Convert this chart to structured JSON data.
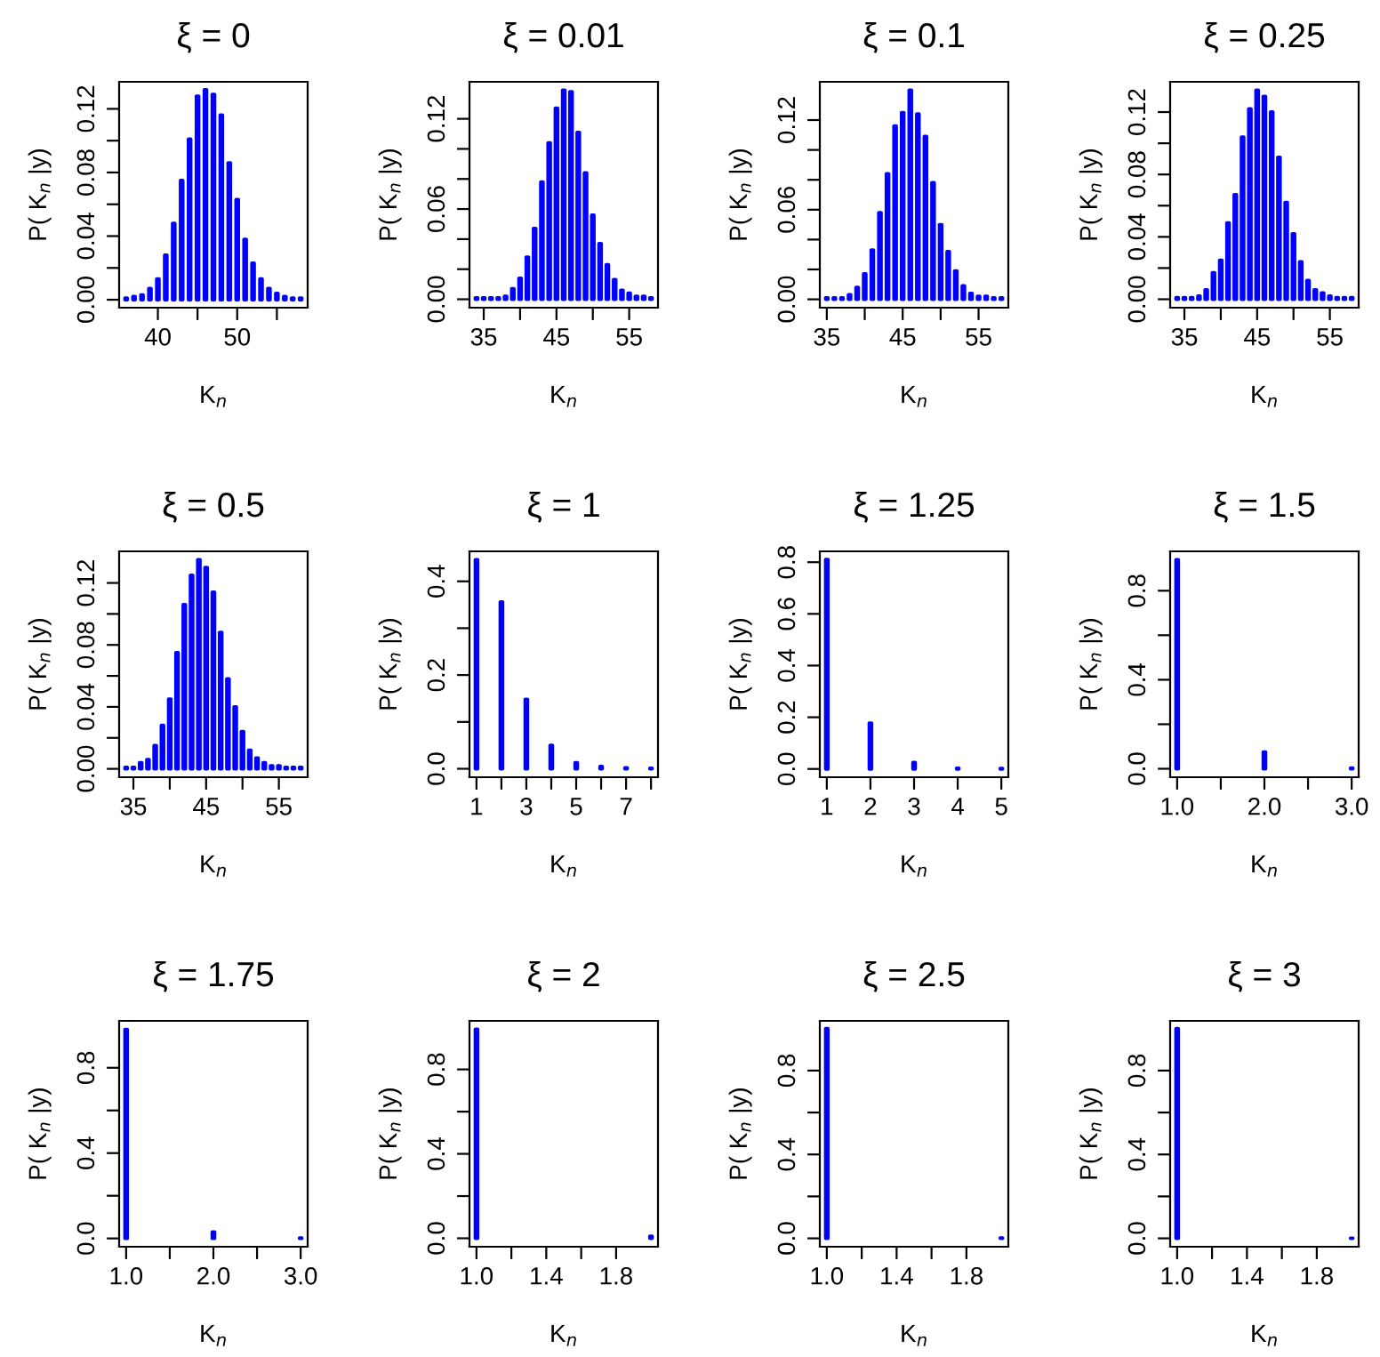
{
  "chart_data": [
    {
      "type": "bar",
      "title": "ξ = 0",
      "xlabel": "K$_{n}$",
      "ylabel": "P( K$_{n}$ |y)",
      "color": "#0000ff",
      "x": [
        36,
        37,
        38,
        39,
        40,
        41,
        42,
        43,
        44,
        45,
        46,
        47,
        48,
        49,
        50,
        51,
        52,
        53,
        54,
        55,
        56,
        57,
        58
      ],
      "values": [
        0.001,
        0.002,
        0.003,
        0.007,
        0.013,
        0.028,
        0.048,
        0.075,
        0.101,
        0.128,
        0.132,
        0.129,
        0.116,
        0.086,
        0.063,
        0.038,
        0.023,
        0.013,
        0.007,
        0.004,
        0.002,
        0.001,
        0.001
      ],
      "xlim": [
        35.12,
        58.88
      ],
      "ylim": [
        -0.005,
        0.137
      ],
      "xticks": [
        40,
        {
          "value": 45,
          "label": null
        },
        50,
        {
          "value": 55,
          "label": null
        }
      ],
      "yticks": [
        "0.00",
        {
          "value": 0.02,
          "label": null
        },
        {
          "value": 0.04,
          "label": "0.04"
        },
        {
          "value": 0.06,
          "label": null
        },
        {
          "value": 0.08,
          "label": "0.08"
        },
        {
          "value": 0.1,
          "label": null
        },
        {
          "value": 0.12,
          "label": "0.12"
        }
      ]
    },
    {
      "type": "bar",
      "title": "ξ = 0.01",
      "xlabel": "K$_{n}$",
      "ylabel": "P( K$_{n}$ |y)",
      "color": "#0000ff",
      "x": [
        34,
        35,
        36,
        37,
        38,
        39,
        40,
        41,
        42,
        43,
        44,
        45,
        46,
        47,
        48,
        49,
        50,
        51,
        52,
        53,
        54,
        55,
        56,
        57,
        58
      ],
      "values": [
        0.001,
        0.001,
        0.001,
        0.001,
        0.002,
        0.007,
        0.014,
        0.028,
        0.047,
        0.078,
        0.104,
        0.127,
        0.139,
        0.138,
        0.111,
        0.084,
        0.056,
        0.037,
        0.023,
        0.013,
        0.006,
        0.004,
        0.002,
        0.002,
        0.001
      ],
      "xlim": [
        33.04,
        58.96
      ],
      "ylim": [
        -0.0056,
        0.1446
      ],
      "xticks": [
        35,
        {
          "value": 40,
          "label": null
        },
        45,
        {
          "value": 50,
          "label": null
        },
        55
      ],
      "yticks": [
        {
          "value": 0,
          "label": "0.00"
        },
        {
          "value": 0.02,
          "label": null
        },
        {
          "value": 0.04,
          "label": null
        },
        {
          "value": 0.06,
          "label": "0.06"
        },
        {
          "value": 0.08,
          "label": null
        },
        {
          "value": 0.1,
          "label": null
        },
        {
          "value": 0.12,
          "label": "0.12"
        }
      ]
    },
    {
      "type": "bar",
      "title": "ξ = 0.1",
      "xlabel": "K$_{n}$",
      "ylabel": "P( K$_{n}$ |y)",
      "color": "#0000ff",
      "x": [
        35,
        36,
        37,
        38,
        39,
        40,
        41,
        42,
        43,
        44,
        45,
        46,
        47,
        48,
        49,
        50,
        51,
        52,
        53,
        54,
        55,
        56,
        57,
        58
      ],
      "values": [
        0.001,
        0.001,
        0.001,
        0.003,
        0.008,
        0.017,
        0.033,
        0.058,
        0.084,
        0.116,
        0.125,
        0.14,
        0.124,
        0.109,
        0.078,
        0.05,
        0.032,
        0.019,
        0.009,
        0.004,
        0.002,
        0.002,
        0.001,
        0.001
      ],
      "xlim": [
        34.08,
        58.92
      ],
      "ylim": [
        -0.0056,
        0.1456
      ],
      "xticks": [
        35,
        {
          "value": 40,
          "label": null
        },
        45,
        {
          "value": 50,
          "label": null
        },
        55
      ],
      "yticks": [
        {
          "value": 0,
          "label": "0.00"
        },
        {
          "value": 0.02,
          "label": null
        },
        {
          "value": 0.04,
          "label": null
        },
        {
          "value": 0.06,
          "label": "0.06"
        },
        {
          "value": 0.08,
          "label": null
        },
        {
          "value": 0.1,
          "label": null
        },
        {
          "value": 0.12,
          "label": "0.12"
        }
      ]
    },
    {
      "type": "bar",
      "title": "ξ = 0.25",
      "xlabel": "K$_{n}$",
      "ylabel": "P( K$_{n}$ |y)",
      "color": "#0000ff",
      "x": [
        34,
        35,
        36,
        37,
        38,
        39,
        40,
        41,
        42,
        43,
        44,
        45,
        46,
        47,
        48,
        49,
        50,
        51,
        52,
        53,
        54,
        55,
        56,
        57,
        58
      ],
      "values": [
        0.001,
        0.001,
        0.001,
        0.002,
        0.006,
        0.017,
        0.025,
        0.049,
        0.067,
        0.104,
        0.122,
        0.134,
        0.13,
        0.12,
        0.091,
        0.062,
        0.042,
        0.024,
        0.012,
        0.006,
        0.004,
        0.002,
        0.001,
        0.001,
        0.001
      ],
      "xlim": [
        33.04,
        58.96
      ],
      "ylim": [
        -0.0054,
        0.1394
      ],
      "xticks": [
        35,
        {
          "value": 40,
          "label": null
        },
        45,
        {
          "value": 50,
          "label": null
        },
        55
      ],
      "yticks": [
        {
          "value": 0,
          "label": "0.00"
        },
        {
          "value": 0.02,
          "label": null
        },
        {
          "value": 0.04,
          "label": "0.04"
        },
        {
          "value": 0.06,
          "label": null
        },
        {
          "value": 0.08,
          "label": "0.08"
        },
        {
          "value": 0.1,
          "label": null
        },
        {
          "value": 0.12,
          "label": "0.12"
        }
      ]
    },
    {
      "type": "bar",
      "title": "ξ = 0.5",
      "xlabel": "K$_{n}$",
      "ylabel": "P( K$_{n}$ |y)",
      "color": "#0000ff",
      "x": [
        34,
        35,
        36,
        37,
        38,
        39,
        40,
        41,
        42,
        43,
        44,
        45,
        46,
        47,
        48,
        49,
        50,
        51,
        52,
        53,
        54,
        55,
        56,
        57,
        58
      ],
      "values": [
        0.001,
        0.001,
        0.004,
        0.006,
        0.015,
        0.028,
        0.045,
        0.075,
        0.106,
        0.125,
        0.135,
        0.13,
        0.114,
        0.088,
        0.058,
        0.04,
        0.024,
        0.012,
        0.007,
        0.004,
        0.002,
        0.002,
        0.001,
        0.001,
        0.001
      ],
      "xlim": [
        33.04,
        58.96
      ],
      "ylim": [
        -0.0054,
        0.1404
      ],
      "xticks": [
        35,
        {
          "value": 40,
          "label": null
        },
        45,
        {
          "value": 50,
          "label": null
        },
        55
      ],
      "yticks": [
        {
          "value": 0,
          "label": "0.00"
        },
        {
          "value": 0.02,
          "label": null
        },
        {
          "value": 0.04,
          "label": "0.04"
        },
        {
          "value": 0.06,
          "label": null
        },
        {
          "value": 0.08,
          "label": "0.08"
        },
        {
          "value": 0.1,
          "label": null
        },
        {
          "value": 0.12,
          "label": "0.12"
        }
      ]
    },
    {
      "type": "bar",
      "title": "ξ = 1",
      "xlabel": "K$_{n}$",
      "ylabel": "P( K$_{n}$ |y)",
      "color": "#0000ff",
      "x": [
        1,
        2,
        3,
        4,
        5,
        6,
        7,
        8
      ],
      "values": [
        0.446,
        0.356,
        0.148,
        0.05,
        0.013,
        0.005,
        0.002,
        0.001
      ],
      "xlim": [
        0.72,
        8.28
      ],
      "ylim": [
        -0.018,
        0.464
      ],
      "xticks": [
        1,
        {
          "value": 2,
          "label": null
        },
        3,
        {
          "value": 4,
          "label": null
        },
        5,
        {
          "value": 6,
          "label": null
        },
        7,
        {
          "value": 8,
          "label": null
        }
      ],
      "yticks": [
        {
          "value": 0,
          "label": "0.0"
        },
        {
          "value": 0.1,
          "label": null
        },
        0.2,
        {
          "value": 0.3,
          "label": null
        },
        0.4
      ]
    },
    {
      "type": "bar",
      "title": "ξ = 1.25",
      "xlabel": "K$_{n}$",
      "ylabel": "P( K$_{n}$ |y)",
      "color": "#0000ff",
      "x": [
        1,
        2,
        3,
        4,
        5
      ],
      "values": [
        0.81,
        0.177,
        0.025,
        0.003,
        0.002
      ],
      "xlim": [
        0.84,
        5.16
      ],
      "ylim": [
        -0.032,
        0.842
      ],
      "xticks": [
        1,
        2,
        3,
        4,
        5
      ],
      "yticks": [
        {
          "value": 0,
          "label": "0.0"
        },
        0.2,
        0.4,
        0.6,
        0.8
      ]
    },
    {
      "type": "bar",
      "title": "ξ = 1.5",
      "xlabel": "K$_{n}$",
      "ylabel": "P( K$_{n}$ |y)",
      "color": "#0000ff",
      "x": [
        1,
        2,
        3
      ],
      "values": [
        0.939,
        0.075,
        0.003
      ],
      "xlim": [
        0.92,
        3.08
      ],
      "ylim": [
        -0.038,
        0.977
      ],
      "xticks": [
        {
          "value": 1,
          "label": "1.0"
        },
        {
          "value": 1.5,
          "label": null
        },
        {
          "value": 2,
          "label": "2.0"
        },
        {
          "value": 2.5,
          "label": null
        },
        {
          "value": 3,
          "label": "3.0"
        }
      ],
      "yticks": [
        {
          "value": 0,
          "label": "0.0"
        },
        {
          "value": 0.2,
          "label": null
        },
        0.4,
        {
          "value": 0.6,
          "label": null
        },
        0.8
      ]
    },
    {
      "type": "bar",
      "title": "ξ = 1.75",
      "xlabel": "K$_{n}$",
      "ylabel": "P( K$_{n}$ |y)",
      "color": "#0000ff",
      "x": [
        1,
        2,
        3
      ],
      "values": [
        0.98,
        0.03,
        0.002
      ],
      "xlim": [
        0.92,
        3.08
      ],
      "ylim": [
        -0.039,
        1.02
      ],
      "xticks": [
        {
          "value": 1,
          "label": "1.0"
        },
        {
          "value": 1.5,
          "label": null
        },
        {
          "value": 2,
          "label": "2.0"
        },
        {
          "value": 2.5,
          "label": null
        },
        {
          "value": 3,
          "label": "3.0"
        }
      ],
      "yticks": [
        {
          "value": 0,
          "label": "0.0"
        },
        {
          "value": 0.2,
          "label": null
        },
        0.4,
        {
          "value": 0.6,
          "label": null
        },
        0.8
      ]
    },
    {
      "type": "bar",
      "title": "ξ = 2",
      "xlabel": "K$_{n}$",
      "ylabel": "P( K$_{n}$ |y)",
      "color": "#0000ff",
      "x": [
        1,
        2
      ],
      "values": [
        0.99,
        0.01
      ],
      "grid": false,
      "xlim": [
        0.96,
        2.04
      ],
      "ylim": [
        -0.04,
        1.03
      ],
      "xticks": [
        {
          "value": 1,
          "label": "1.0"
        },
        {
          "value": 1.2,
          "label": null
        },
        1.4,
        {
          "value": 1.6,
          "label": null
        },
        1.8
      ],
      "yticks": [
        {
          "value": 0,
          "label": "0.0"
        },
        {
          "value": 0.2,
          "label": null
        },
        0.4,
        {
          "value": 0.6,
          "label": null
        },
        0.8
      ]
    },
    {
      "type": "bar",
      "title": "ξ = 2.5",
      "xlabel": "K$_{n}$",
      "ylabel": "P( K$_{n}$ |y)",
      "color": "#0000ff",
      "x": [
        1,
        2
      ],
      "values": [
        1.0,
        0.002
      ],
      "xlim": [
        0.96,
        2.04
      ],
      "ylim": [
        -0.04,
        1.037
      ],
      "xticks": [
        {
          "value": 1,
          "label": "1.0"
        },
        {
          "value": 1.2,
          "label": null
        },
        1.4,
        {
          "value": 1.6,
          "label": null
        },
        1.8
      ],
      "yticks": [
        {
          "value": 0,
          "label": "0.0"
        },
        {
          "value": 0.2,
          "label": null
        },
        0.4,
        {
          "value": 0.6,
          "label": null
        },
        0.8
      ]
    },
    {
      "type": "bar",
      "title": "ξ = 3",
      "xlabel": "K$_{n}$",
      "ylabel": "P( K$_{n}$ |y)",
      "color": "#0000ff",
      "x": [
        1,
        2
      ],
      "values": [
        1.0,
        0.001
      ],
      "xlim": [
        0.96,
        2.04
      ],
      "ylim": [
        -0.04,
        1.037
      ],
      "xticks": [
        {
          "value": 1,
          "label": "1.0"
        },
        {
          "value": 1.2,
          "label": null
        },
        1.4,
        {
          "value": 1.6,
          "label": null
        },
        1.8
      ],
      "yticks": [
        {
          "value": 0,
          "label": "0.0"
        },
        {
          "value": 0.2,
          "label": null
        },
        0.4,
        {
          "value": 0.6,
          "label": null
        },
        0.8
      ]
    }
  ]
}
